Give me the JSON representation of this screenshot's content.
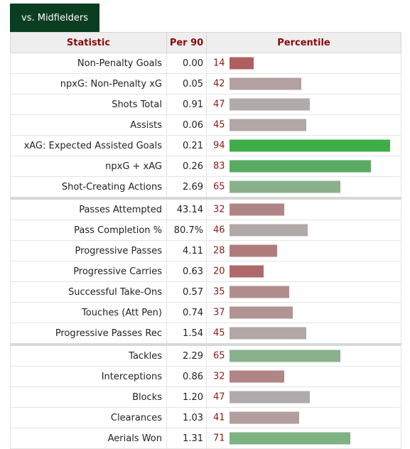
{
  "tab": {
    "label": "vs. Midfielders"
  },
  "headers": {
    "statistic": "Statistic",
    "per90": "Per 90",
    "percentile": "Percentile"
  },
  "rows": [
    {
      "stat": "Non-Penalty Goals",
      "per90": "0.00",
      "pct": "14",
      "pctValue": 14,
      "color": "#b05f5f"
    },
    {
      "stat": "npxG: Non-Penalty xG",
      "per90": "0.05",
      "pct": "42",
      "pctValue": 42,
      "color": "#b3a0a0"
    },
    {
      "stat": "Shots Total",
      "per90": "0.91",
      "pct": "47",
      "pctValue": 47,
      "color": "#b1aaaa"
    },
    {
      "stat": "Assists",
      "per90": "0.06",
      "pct": "45",
      "pctValue": 45,
      "color": "#b2a6a6"
    },
    {
      "stat": "xAG: Expected Assisted Goals",
      "per90": "0.21",
      "pct": "94",
      "pctValue": 94,
      "color": "#3fae47"
    },
    {
      "stat": "npxG + xAG",
      "per90": "0.26",
      "pct": "83",
      "pctValue": 83,
      "color": "#5aab62"
    },
    {
      "stat": "Shot-Creating Actions",
      "per90": "2.69",
      "pct": "65",
      "pctValue": 65,
      "color": "#8ab18b"
    },
    {
      "stat": "Passes Attempted",
      "per90": "43.14",
      "pct": "32",
      "pctValue": 32,
      "color": "#b08585",
      "sep": true
    },
    {
      "stat": "Pass Completion %",
      "per90": "80.7%",
      "pct": "46",
      "pctValue": 46,
      "color": "#b2a8a8"
    },
    {
      "stat": "Progressive Passes",
      "per90": "4.11",
      "pct": "28",
      "pctValue": 28,
      "color": "#af7c7c"
    },
    {
      "stat": "Progressive Carries",
      "per90": "0.63",
      "pct": "20",
      "pctValue": 20,
      "color": "#ae6a6a"
    },
    {
      "stat": "Successful Take-Ons",
      "per90": "0.57",
      "pct": "35",
      "pctValue": 35,
      "color": "#b18e8e"
    },
    {
      "stat": "Touches (Att Pen)",
      "per90": "0.74",
      "pct": "37",
      "pctValue": 37,
      "color": "#b19393"
    },
    {
      "stat": "Progressive Passes Rec",
      "per90": "1.54",
      "pct": "45",
      "pctValue": 45,
      "color": "#b2a6a6"
    },
    {
      "stat": "Tackles",
      "per90": "2.29",
      "pct": "65",
      "pctValue": 65,
      "color": "#8ab18b",
      "sep": true
    },
    {
      "stat": "Interceptions",
      "per90": "0.86",
      "pct": "32",
      "pctValue": 32,
      "color": "#b08585"
    },
    {
      "stat": "Blocks",
      "per90": "1.20",
      "pct": "47",
      "pctValue": 47,
      "color": "#b1aaaa"
    },
    {
      "stat": "Clearances",
      "per90": "1.03",
      "pct": "41",
      "pctValue": 41,
      "color": "#b39e9e"
    },
    {
      "stat": "Aerials Won",
      "per90": "1.31",
      "pct": "71",
      "pctValue": 71,
      "color": "#7fb281"
    }
  ]
}
